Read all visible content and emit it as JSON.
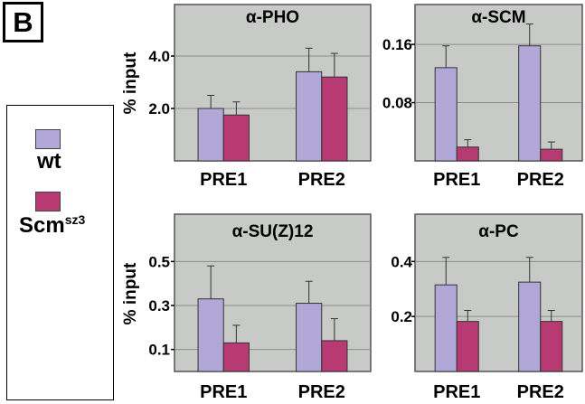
{
  "figure": {
    "panel_letter": "B"
  },
  "legend": {
    "items": [
      {
        "label": "wt",
        "color": "#b2a8d8"
      },
      {
        "label": "Scm",
        "superscript": "sz3",
        "color": "#b83a72"
      }
    ]
  },
  "colors": {
    "panel_bg": "#c8cac8",
    "wt": "#b2a8d8",
    "mut": "#b83a72"
  },
  "chart_data": [
    {
      "type": "bar",
      "title": "α-PHO",
      "ylabel": "% input",
      "categories": [
        "PRE1",
        "PRE2"
      ],
      "ylim": [
        0,
        5.0
      ],
      "yticks": [
        "2.0",
        "4.0"
      ],
      "grid": true,
      "series": [
        {
          "name": "wt",
          "values": [
            2.0,
            3.4
          ],
          "errors": [
            0.5,
            0.9
          ]
        },
        {
          "name": "Scm",
          "values": [
            1.75,
            3.2
          ],
          "errors": [
            0.5,
            0.9
          ]
        }
      ]
    },
    {
      "type": "bar",
      "title": "α-SCM",
      "ylabel": "",
      "categories": [
        "PRE1",
        "PRE2"
      ],
      "ylim": [
        0,
        0.18
      ],
      "yticks": [
        "0.08",
        "0.16"
      ],
      "grid": true,
      "series": [
        {
          "name": "wt",
          "values": [
            0.128,
            0.158
          ],
          "errors": [
            0.03,
            0.03
          ]
        },
        {
          "name": "Scm",
          "values": [
            0.019,
            0.016
          ],
          "errors": [
            0.01,
            0.01
          ]
        }
      ]
    },
    {
      "type": "bar",
      "title": "α-SU(Z)12",
      "ylabel": "% input",
      "categories": [
        "PRE1",
        "PRE2"
      ],
      "ylim": [
        0,
        0.6
      ],
      "yticks": [
        "0.1",
        "0.3",
        "0.5"
      ],
      "grid": true,
      "series": [
        {
          "name": "wt",
          "values": [
            0.33,
            0.31
          ],
          "errors": [
            0.15,
            0.1
          ]
        },
        {
          "name": "Scm",
          "values": [
            0.13,
            0.14
          ],
          "errors": [
            0.08,
            0.1
          ]
        }
      ]
    },
    {
      "type": "bar",
      "title": "α-PC",
      "ylabel": "",
      "categories": [
        "PRE1",
        "PRE2"
      ],
      "ylim": [
        0,
        0.48
      ],
      "yticks": [
        "0.2",
        "0.4"
      ],
      "grid": true,
      "series": [
        {
          "name": "wt",
          "values": [
            0.315,
            0.325
          ],
          "errors": [
            0.1,
            0.09
          ]
        },
        {
          "name": "Scm",
          "values": [
            0.182,
            0.182
          ],
          "errors": [
            0.04,
            0.04
          ]
        }
      ]
    }
  ]
}
